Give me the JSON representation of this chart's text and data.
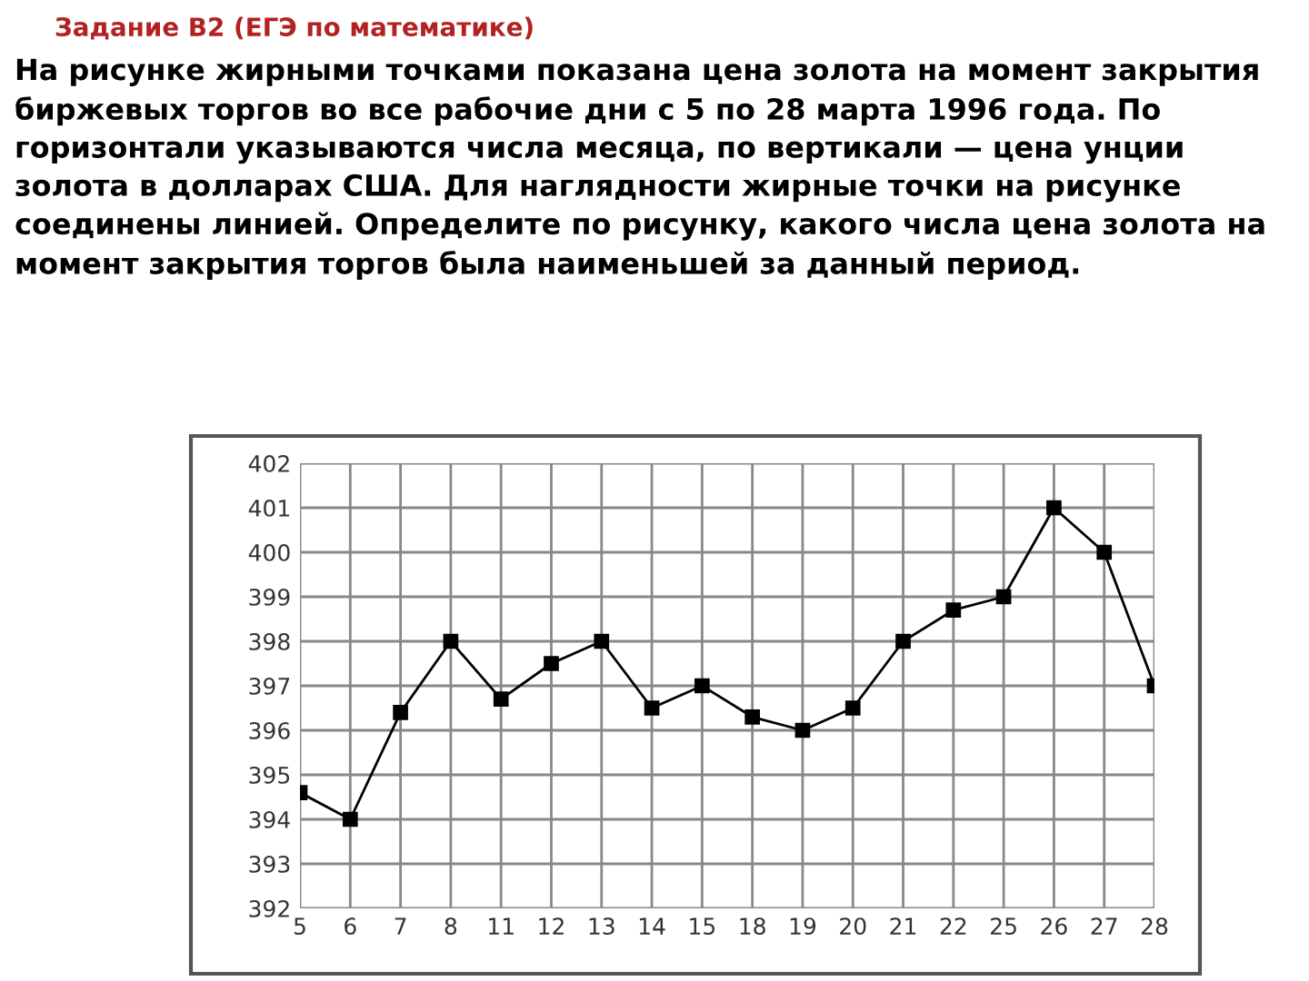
{
  "chart_data": {
    "type": "line",
    "title": "Задание B2 (ЕГЭ по математике)",
    "subtitle": "На рисунке жирными точками показана цена золота на момент закрытия биржевых торгов во все рабочие дни с 5 по 28 марта 1996 года. По горизонтали указываются числа месяца, по вертикали — цена унции золота в долларах США. Для наглядности жирные точки на рисунке соединены линией. Определите по рисунку, какого числа цена золота на момент закрытия торгов была наименьшей за данный период.",
    "categories": [
      "5",
      "6",
      "7",
      "8",
      "11",
      "12",
      "13",
      "14",
      "15",
      "18",
      "19",
      "20",
      "21",
      "22",
      "25",
      "26",
      "27",
      "28"
    ],
    "series": [
      {
        "color": "#000000",
        "values": [
          394.6,
          394,
          396.4,
          398,
          396.7,
          397.5,
          398,
          396.5,
          397,
          396.3,
          396,
          396.5,
          398,
          398.7,
          399,
          401,
          400,
          397
        ]
      }
    ],
    "ylim": [
      392,
      402
    ],
    "yticks": [
      392,
      393,
      394,
      395,
      396,
      397,
      398,
      399,
      400,
      401,
      402
    ],
    "grid": true,
    "marker": "square",
    "line_style": "solid"
  }
}
